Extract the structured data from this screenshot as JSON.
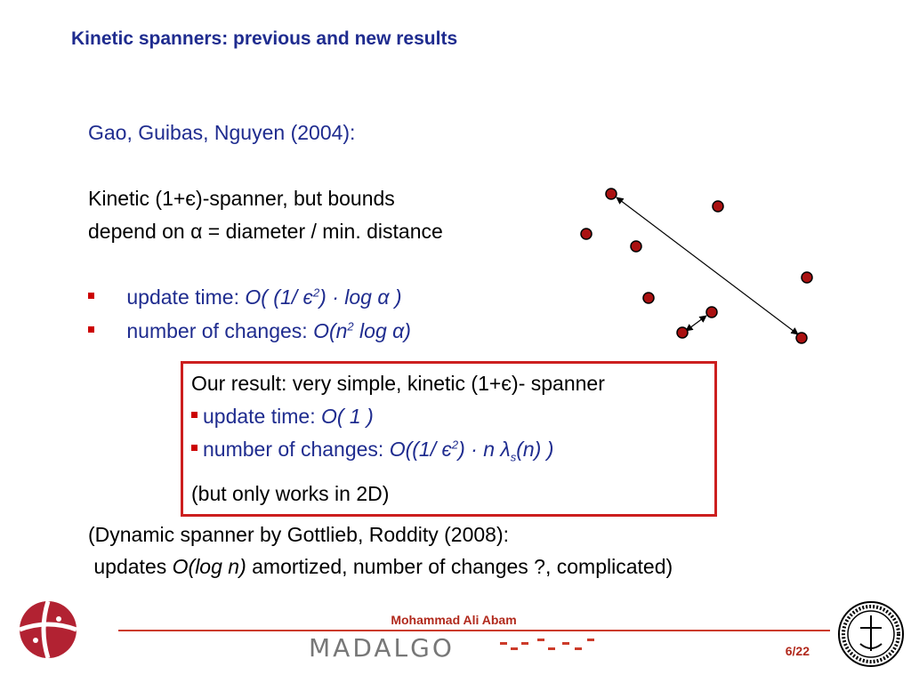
{
  "slide": {
    "title": "Kinetic spanners: previous and new results",
    "previous": {
      "citation": "Gao, Guibas, Nguyen (2004):",
      "desc_line1": "Kinetic (1+є)-spanner, but bounds",
      "desc_line2": "depend on  α  =  diameter / min. distance",
      "bullets": [
        {
          "label": "update time: ",
          "formula_prefix": "O( (1/ є",
          "formula_sup": "2",
          "formula_suffix": ") · log α )"
        },
        {
          "label": "number of changes: ",
          "formula_prefix": "O(n",
          "formula_sup": "2",
          "formula_suffix": " log α)"
        }
      ]
    },
    "result_box": {
      "heading": "Our result: very simple, kinetic (1+є)- spanner",
      "bullet1_label": "update time: ",
      "bullet1_formula": "O( 1 )",
      "bullet2_label": "number of changes: ",
      "bullet2_f1": "O((1/ є",
      "bullet2_sup": "2",
      "bullet2_f2": ") · n λ",
      "bullet2_sub": "s",
      "bullet2_f3": "(n) )",
      "note": "(but only works in 2D)"
    },
    "dynamic": {
      "line1": "(Dynamic spanner by Gottlieb, Roddity (2008):",
      "line2_prefix": " updates ",
      "line2_formula": "O(log n)",
      "line2_suffix": " amortized, number of changes ?, complicated)"
    }
  },
  "footer": {
    "presenter": "Mohammad Ali Abam",
    "page": "6/22",
    "wordmark": "MADALGO"
  },
  "colors": {
    "title": "#1f2c8f",
    "bullet": "#cc0000",
    "box_border": "#cc1f1f",
    "point_fill": "#aa1111",
    "footer_red": "#b1291c"
  },
  "icons": {
    "left_logo": "university-logo-icon",
    "right_logo": "university-seal-icon"
  }
}
